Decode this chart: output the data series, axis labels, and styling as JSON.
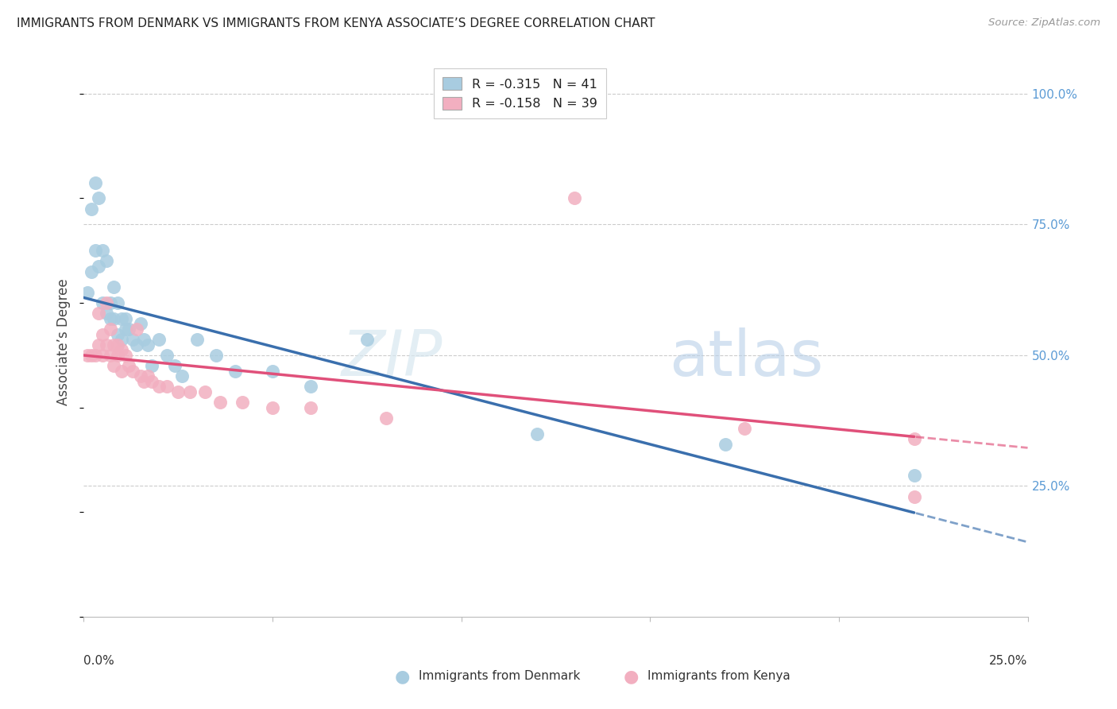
{
  "title": "IMMIGRANTS FROM DENMARK VS IMMIGRANTS FROM KENYA ASSOCIATE’S DEGREE CORRELATION CHART",
  "source": "Source: ZipAtlas.com",
  "ylabel": "Associate’s Degree",
  "denmark_R": -0.315,
  "denmark_N": 41,
  "kenya_R": -0.158,
  "kenya_N": 39,
  "denmark_color": "#a8cce0",
  "kenya_color": "#f2afc0",
  "denmark_line_color": "#3a6fad",
  "kenya_line_color": "#e0507a",
  "xlim": [
    0.0,
    0.25
  ],
  "ylim": [
    0.0,
    1.05
  ],
  "denmark_x": [
    0.001,
    0.002,
    0.002,
    0.003,
    0.003,
    0.004,
    0.004,
    0.005,
    0.005,
    0.006,
    0.006,
    0.007,
    0.007,
    0.008,
    0.008,
    0.009,
    0.009,
    0.01,
    0.01,
    0.011,
    0.011,
    0.012,
    0.013,
    0.014,
    0.015,
    0.016,
    0.017,
    0.018,
    0.02,
    0.022,
    0.024,
    0.026,
    0.03,
    0.035,
    0.04,
    0.05,
    0.06,
    0.075,
    0.12,
    0.17,
    0.22
  ],
  "denmark_y": [
    0.62,
    0.78,
    0.66,
    0.83,
    0.7,
    0.8,
    0.67,
    0.7,
    0.6,
    0.68,
    0.58,
    0.6,
    0.57,
    0.63,
    0.57,
    0.6,
    0.54,
    0.57,
    0.53,
    0.57,
    0.55,
    0.55,
    0.53,
    0.52,
    0.56,
    0.53,
    0.52,
    0.48,
    0.53,
    0.5,
    0.48,
    0.46,
    0.53,
    0.5,
    0.47,
    0.47,
    0.44,
    0.53,
    0.35,
    0.33,
    0.27
  ],
  "kenya_x": [
    0.001,
    0.002,
    0.003,
    0.004,
    0.004,
    0.005,
    0.005,
    0.006,
    0.006,
    0.007,
    0.007,
    0.008,
    0.008,
    0.009,
    0.009,
    0.01,
    0.01,
    0.011,
    0.012,
    0.013,
    0.014,
    0.015,
    0.016,
    0.017,
    0.018,
    0.02,
    0.022,
    0.025,
    0.028,
    0.032,
    0.036,
    0.042,
    0.05,
    0.06,
    0.08,
    0.13,
    0.175,
    0.22,
    0.22
  ],
  "kenya_y": [
    0.5,
    0.5,
    0.5,
    0.58,
    0.52,
    0.54,
    0.5,
    0.6,
    0.52,
    0.55,
    0.5,
    0.52,
    0.48,
    0.52,
    0.5,
    0.51,
    0.47,
    0.5,
    0.48,
    0.47,
    0.55,
    0.46,
    0.45,
    0.46,
    0.45,
    0.44,
    0.44,
    0.43,
    0.43,
    0.43,
    0.41,
    0.41,
    0.4,
    0.4,
    0.38,
    0.8,
    0.36,
    0.34,
    0.23
  ]
}
